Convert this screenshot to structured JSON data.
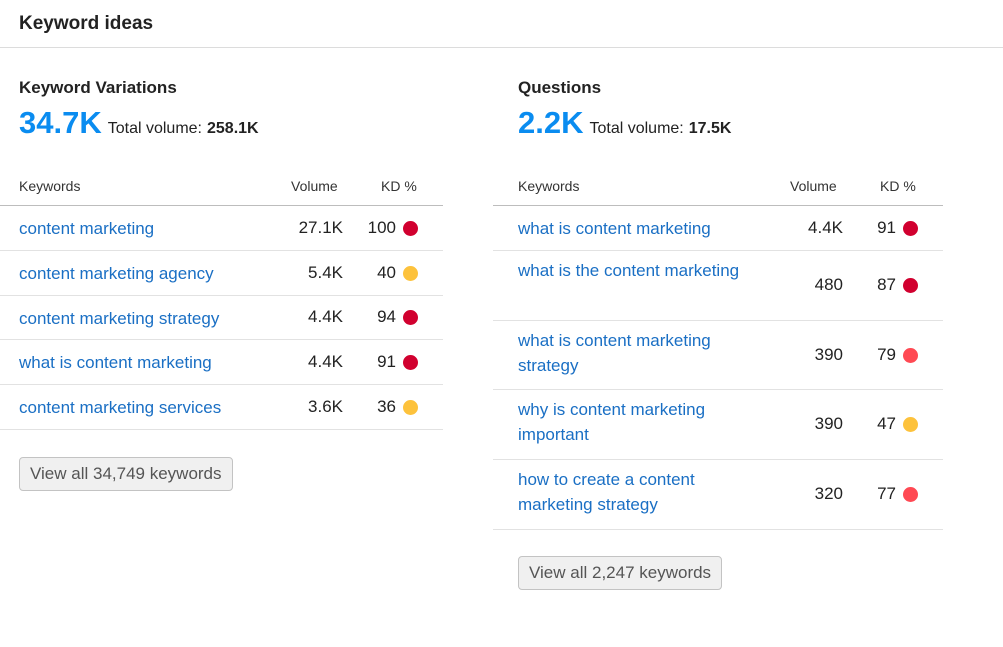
{
  "header": {
    "title": "Keyword ideas"
  },
  "colors": {
    "accent": "#0a8cf0",
    "link": "#1a6fc4",
    "kd_very_hard": "#d1002f",
    "kd_hard": "#ff4953",
    "kd_medium": "#fdc23c"
  },
  "variations": {
    "title": "Keyword Variations",
    "count": "34.7K",
    "total_volume_label": "Total volume:",
    "total_volume": "258.1K",
    "columns": {
      "keywords": "Keywords",
      "volume": "Volume",
      "kd": "KD %"
    },
    "rows": [
      {
        "keyword": "content marketing",
        "volume": "27.1K",
        "kd": "100",
        "kd_color": "#d1002f"
      },
      {
        "keyword": "content marketing agency",
        "volume": "5.4K",
        "kd": "40",
        "kd_color": "#fdc23c"
      },
      {
        "keyword": "content marketing strategy",
        "volume": "4.4K",
        "kd": "94",
        "kd_color": "#d1002f"
      },
      {
        "keyword": "what is content marketing",
        "volume": "4.4K",
        "kd": "91",
        "kd_color": "#d1002f"
      },
      {
        "keyword": "content marketing services",
        "volume": "3.6K",
        "kd": "36",
        "kd_color": "#fdc23c"
      }
    ],
    "view_all_label": "View all 34,749 keywords"
  },
  "questions": {
    "title": "Questions",
    "count": "2.2K",
    "total_volume_label": "Total volume:",
    "total_volume": "17.5K",
    "columns": {
      "keywords": "Keywords",
      "volume": "Volume",
      "kd": "KD %"
    },
    "rows": [
      {
        "keyword": "what is content marketing",
        "volume": "4.4K",
        "kd": "91",
        "kd_color": "#d1002f"
      },
      {
        "keyword": "what is the content marketing",
        "volume": "480",
        "kd": "87",
        "kd_color": "#d1002f"
      },
      {
        "keyword": "what is content marketing strategy",
        "volume": "390",
        "kd": "79",
        "kd_color": "#ff4953"
      },
      {
        "keyword": "why is content marketing important",
        "volume": "390",
        "kd": "47",
        "kd_color": "#fdc23c"
      },
      {
        "keyword": "how to create a content marketing strategy",
        "volume": "320",
        "kd": "77",
        "kd_color": "#ff4953"
      }
    ],
    "view_all_label": "View all 2,247 keywords"
  }
}
